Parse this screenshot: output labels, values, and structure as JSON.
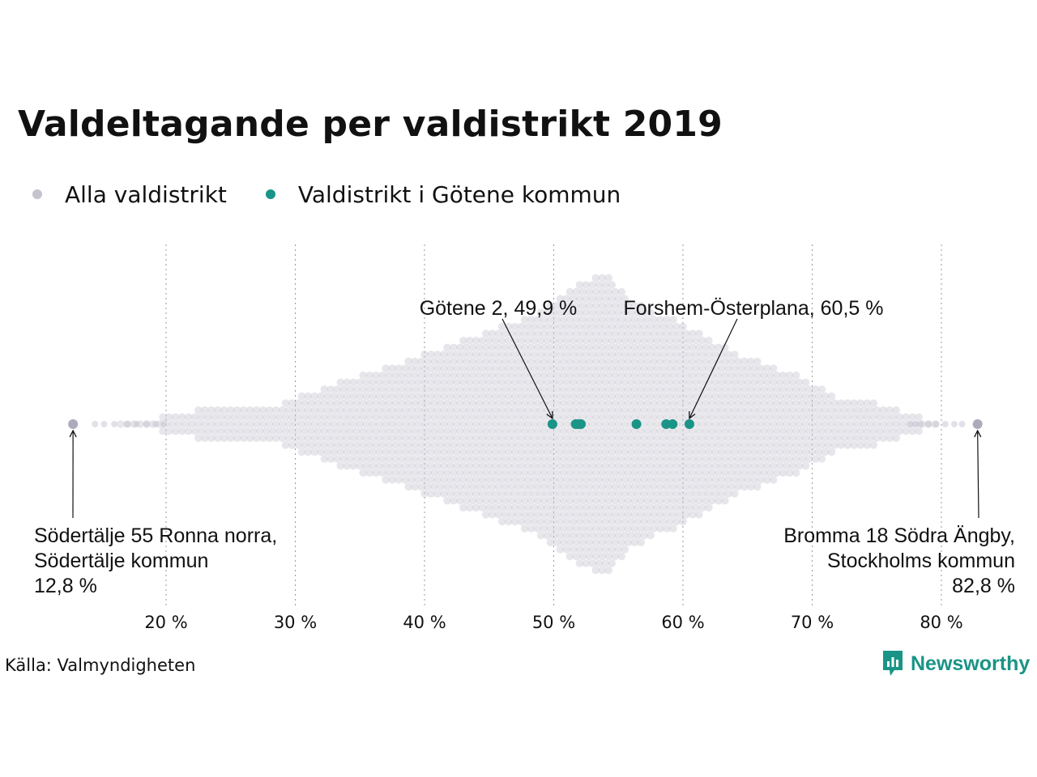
{
  "title": "Valdeltagande per valdistrikt 2019",
  "legend": [
    {
      "label": "Alla valdistrikt",
      "color": "#c5c3d0"
    },
    {
      "label": "Valdistrikt i Götene kommun",
      "color": "#1a9486"
    }
  ],
  "source": "Källa: Valmyndigheten",
  "logo": {
    "text": "Newsworthy",
    "color": "#1a9486"
  },
  "chart_data": {
    "type": "scatter",
    "subtype": "beeswarm",
    "title": "Valdeltagande per valdistrikt 2019",
    "xlabel": "",
    "ylabel": "",
    "x_unit": "%",
    "xlim": [
      12,
      85
    ],
    "x_ticks": [
      20,
      30,
      40,
      50,
      60,
      70,
      80
    ],
    "x_tick_labels": [
      "20 %",
      "30 %",
      "40 %",
      "50 %",
      "60 %",
      "70 %",
      "80 %"
    ],
    "grid": "vertical dotted at ticks",
    "legend_position": "top-left",
    "series": [
      {
        "name": "Alla valdistrikt",
        "color": "#c5c3d0",
        "distribution_outline": [
          [
            16,
            0
          ],
          [
            20,
            1
          ],
          [
            24,
            2
          ],
          [
            28,
            2
          ],
          [
            32,
            4
          ],
          [
            36,
            6
          ],
          [
            40,
            8
          ],
          [
            44,
            10
          ],
          [
            48,
            12
          ],
          [
            52,
            16
          ],
          [
            54,
            17
          ],
          [
            56,
            14
          ],
          [
            60,
            11
          ],
          [
            64,
            8
          ],
          [
            68,
            6
          ],
          [
            72,
            3
          ],
          [
            76,
            2
          ],
          [
            80,
            0
          ]
        ],
        "extremes": [
          12.8,
          82.8
        ]
      },
      {
        "name": "Valdistrikt i Götene kommun",
        "color": "#1a9486",
        "values": [
          49.9,
          51.7,
          51.9,
          52.1,
          56.4,
          58.7,
          59.2,
          60.5
        ]
      }
    ],
    "annotations": [
      {
        "x": 49.9,
        "lines": [
          "Götene 2, 49,9 %"
        ]
      },
      {
        "x": 60.5,
        "lines": [
          "Forshem-Österplana, 60,5 %"
        ]
      },
      {
        "x": 12.8,
        "lines": [
          "Södertälje 55 Ronna norra,",
          "Södertälje kommun",
          "12,8 %"
        ]
      },
      {
        "x": 82.8,
        "lines": [
          "Bromma 18 Södra Ängby,",
          "Stockholms kommun",
          "82,8 %"
        ]
      }
    ]
  }
}
